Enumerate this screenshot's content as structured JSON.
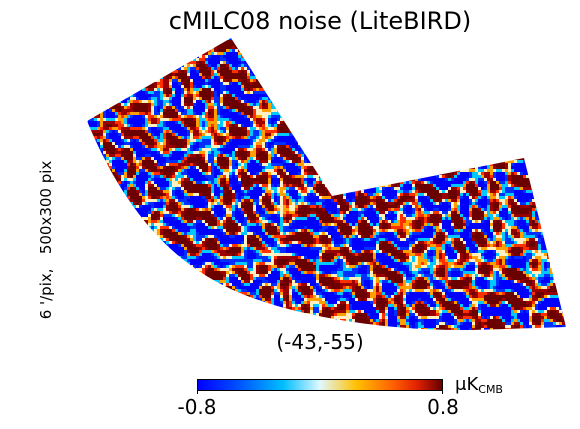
{
  "title": "cMILC08 noise (LiteBIRD)",
  "side_label": "6 '/pix,   500x300 pix",
  "center_coords": "(-43,-55)",
  "colorbar": {
    "min_label": "-0.8",
    "max_label": "0.8",
    "unit_symbol": "μK",
    "unit_subscript": "CMB",
    "colors": [
      "#0000ff",
      "#0048ff",
      "#00bfff",
      "#e0f8ff",
      "#ffc000",
      "#ff6000",
      "#e02000",
      "#660000"
    ]
  },
  "map": {
    "colormap_colors": [
      "#0000ff",
      "#0030ff",
      "#00c8ff",
      "#fff0c0",
      "#ffa000",
      "#ff3000",
      "#9a0000",
      "#6a0000"
    ]
  }
}
